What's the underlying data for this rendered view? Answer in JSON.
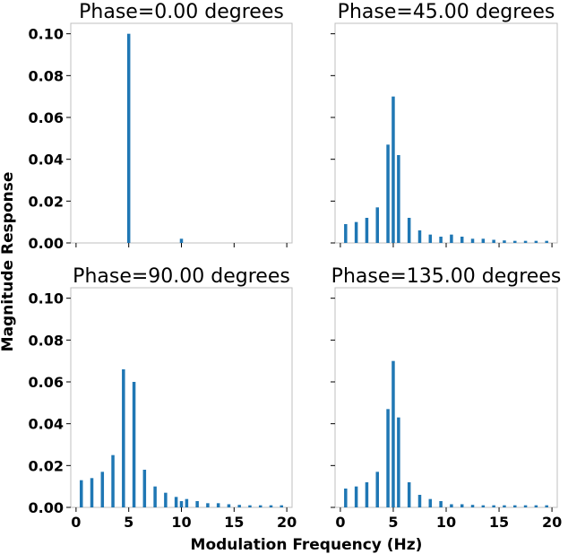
{
  "figure": {
    "xlabel": "Modulation Frequency (Hz)",
    "ylabel": "Magnitude Response",
    "bar_color": "#1f77b4"
  },
  "chart_data": [
    {
      "type": "bar",
      "title": "Phase=0.00 degrees",
      "x": [
        0.5,
        1.5,
        2.5,
        3.5,
        4.5,
        5.0,
        5.5,
        6.5,
        7.5,
        8.5,
        9.5,
        10.0,
        10.5,
        11.5,
        12.5,
        13.5,
        14.5,
        15.5,
        16.5,
        17.5,
        18.5,
        19.5
      ],
      "values": [
        0,
        0,
        0,
        0,
        0,
        0.1,
        0,
        0,
        0,
        0,
        0,
        0.002,
        0,
        0,
        0,
        0,
        0,
        0,
        0,
        0,
        0,
        0
      ],
      "xlim": [
        -0.5,
        20.5
      ],
      "ylim": [
        0,
        0.105
      ],
      "xticks": [
        0,
        5,
        10,
        15,
        20
      ],
      "yticks": [
        0.0,
        0.02,
        0.04,
        0.06,
        0.08,
        0.1
      ],
      "show_xticklabels": false,
      "show_yticklabels": true
    },
    {
      "type": "bar",
      "title": "Phase=45.00 degrees",
      "x": [
        0.5,
        1.5,
        2.5,
        3.5,
        4.5,
        5.0,
        5.5,
        6.5,
        7.5,
        8.5,
        9.5,
        10.5,
        11.5,
        12.5,
        13.5,
        14.5,
        15.5,
        16.5,
        17.5,
        18.5,
        19.5
      ],
      "values": [
        0.009,
        0.01,
        0.012,
        0.017,
        0.047,
        0.07,
        0.042,
        0.012,
        0.006,
        0.004,
        0.003,
        0.004,
        0.003,
        0.002,
        0.002,
        0.0015,
        0.0012,
        0.001,
        0.001,
        0.001,
        0.001
      ],
      "xlim": [
        -0.5,
        20.5
      ],
      "ylim": [
        0,
        0.105
      ],
      "xticks": [
        0,
        5,
        10,
        15,
        20
      ],
      "yticks": [
        0.0,
        0.02,
        0.04,
        0.06,
        0.08,
        0.1
      ],
      "show_xticklabels": false,
      "show_yticklabels": false
    },
    {
      "type": "bar",
      "title": "Phase=90.00 degrees",
      "x": [
        0.5,
        1.5,
        2.5,
        3.5,
        4.5,
        5.5,
        6.5,
        7.5,
        8.5,
        9.5,
        10.0,
        10.5,
        11.5,
        12.5,
        13.5,
        14.5,
        15.5,
        16.5,
        17.5,
        18.5,
        19.5
      ],
      "values": [
        0.013,
        0.014,
        0.017,
        0.025,
        0.066,
        0.06,
        0.018,
        0.01,
        0.007,
        0.005,
        0.003,
        0.004,
        0.003,
        0.002,
        0.002,
        0.0015,
        0.0012,
        0.001,
        0.001,
        0.001,
        0.001
      ],
      "xlim": [
        -0.5,
        20.5
      ],
      "ylim": [
        0,
        0.105
      ],
      "xticks": [
        0,
        5,
        10,
        15,
        20
      ],
      "yticks": [
        0.0,
        0.02,
        0.04,
        0.06,
        0.08,
        0.1
      ],
      "show_xticklabels": true,
      "show_yticklabels": true
    },
    {
      "type": "bar",
      "title": "Phase=135.00 degrees",
      "x": [
        0.5,
        1.5,
        2.5,
        3.5,
        4.5,
        5.0,
        5.5,
        6.5,
        7.5,
        8.5,
        9.5,
        10.5,
        11.5,
        12.5,
        13.5,
        14.5,
        15.5,
        16.5,
        17.5,
        18.5,
        19.5
      ],
      "values": [
        0.009,
        0.01,
        0.012,
        0.017,
        0.047,
        0.07,
        0.043,
        0.012,
        0.006,
        0.004,
        0.003,
        0.0015,
        0.0015,
        0.0012,
        0.001,
        0.001,
        0.001,
        0.001,
        0.001,
        0.001,
        0.001
      ],
      "xlim": [
        -0.5,
        20.5
      ],
      "ylim": [
        0,
        0.105
      ],
      "xticks": [
        0,
        5,
        10,
        15,
        20
      ],
      "yticks": [
        0.0,
        0.02,
        0.04,
        0.06,
        0.08,
        0.1
      ],
      "show_xticklabels": true,
      "show_yticklabels": false
    }
  ]
}
